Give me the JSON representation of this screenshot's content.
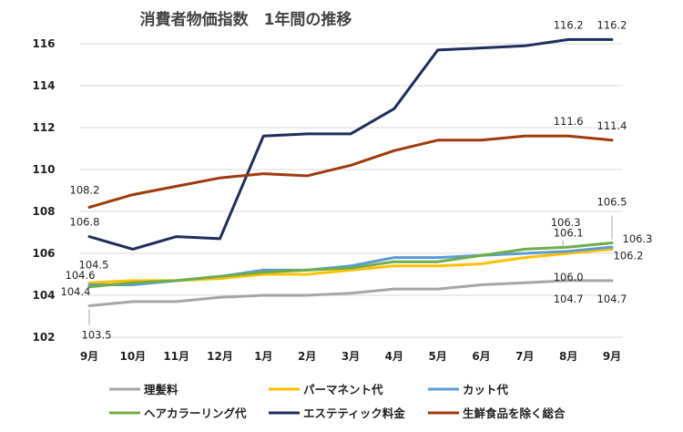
{
  "chart_data": {
    "type": "line",
    "title": "消費者物価指数　1年間の推移",
    "categories": [
      "9月",
      "10月",
      "11月",
      "12月",
      "1月",
      "2月",
      "3月",
      "4月",
      "5月",
      "6月",
      "7月",
      "8月",
      "9月"
    ],
    "y_ticks": [
      "102",
      "104",
      "106",
      "108",
      "110",
      "112",
      "114",
      "116"
    ],
    "ylim": [
      102,
      117
    ],
    "grid": true,
    "legend_position": "bottom",
    "series": [
      {
        "name": "理髪料",
        "color": "#a6a6a6",
        "values": [
          103.5,
          103.7,
          103.7,
          103.9,
          104.0,
          104.0,
          104.1,
          104.3,
          104.3,
          104.5,
          104.6,
          104.7,
          104.7
        ]
      },
      {
        "name": "パーマネント代",
        "color": "#ffc000",
        "values": [
          104.6,
          104.7,
          104.7,
          104.8,
          105.0,
          105.0,
          105.2,
          105.4,
          105.4,
          105.5,
          105.8,
          106.0,
          106.2
        ]
      },
      {
        "name": "カット代",
        "color": "#5b9bd5",
        "values": [
          104.5,
          104.5,
          104.7,
          104.9,
          105.2,
          105.2,
          105.4,
          105.8,
          105.8,
          105.9,
          106.0,
          106.1,
          106.3
        ]
      },
      {
        "name": "ヘアカラーリング代",
        "color": "#70ad47",
        "values": [
          104.4,
          104.6,
          104.7,
          104.9,
          105.1,
          105.2,
          105.3,
          105.6,
          105.6,
          105.9,
          106.2,
          106.3,
          106.5
        ]
      },
      {
        "name": "エステティック料金",
        "color": "#1f2d5c",
        "values": [
          106.8,
          106.2,
          106.8,
          106.7,
          111.6,
          111.7,
          111.7,
          112.9,
          115.7,
          115.8,
          115.9,
          116.2,
          116.2
        ]
      },
      {
        "name": "生鮮食品を除く総合",
        "color": "#9e3a0c",
        "values": [
          108.2,
          108.8,
          109.2,
          109.6,
          109.8,
          109.7,
          110.2,
          110.9,
          111.4,
          111.4,
          111.6,
          111.6,
          111.4
        ]
      }
    ],
    "data_labels": [
      {
        "series": "生鮮食品を除く総合",
        "text": "108.2",
        "x_index": 0,
        "value": 108.2
      },
      {
        "series": "エステティック料金",
        "text": "106.8",
        "x_index": 0,
        "value": 106.8
      },
      {
        "series": "カット代",
        "text": "104.5",
        "x_index": 0,
        "value": 104.5
      },
      {
        "series": "パーマネント代",
        "text": "104.6",
        "x_index": 0,
        "value": 104.6
      },
      {
        "series": "ヘアカラーリング代",
        "text": "104.4",
        "x_index": 0,
        "value": 104.4
      },
      {
        "series": "理髪料",
        "text": "103.5",
        "x_index": 0,
        "value": 103.5
      },
      {
        "series": "エステティック料金",
        "text": "116.2",
        "x_index": 11,
        "value": 116.2
      },
      {
        "series": "エステティック料金",
        "text": "116.2",
        "x_index": 12,
        "value": 116.2
      },
      {
        "series": "生鮮食品を除く総合",
        "text": "111.6",
        "x_index": 11,
        "value": 111.6
      },
      {
        "series": "生鮮食品を除く総合",
        "text": "111.4",
        "x_index": 12,
        "value": 111.4
      },
      {
        "series": "ヘアカラーリング代",
        "text": "106.3",
        "x_index": 11,
        "value": 106.3
      },
      {
        "series": "カット代",
        "text": "106.1",
        "x_index": 11,
        "value": 106.1
      },
      {
        "series": "パーマネント代",
        "text": "106.0",
        "x_index": 11,
        "value": 106.0
      },
      {
        "series": "理髪料",
        "text": "104.7",
        "x_index": 11,
        "value": 104.7
      },
      {
        "series": "ヘアカラーリング代",
        "text": "106.5",
        "x_index": 12,
        "value": 106.5
      },
      {
        "series": "カット代",
        "text": "106.3",
        "x_index": 12,
        "value": 106.3
      },
      {
        "series": "パーマネント代",
        "text": "106.2",
        "x_index": 12,
        "value": 106.2
      },
      {
        "series": "理髪料",
        "text": "104.7",
        "x_index": 12,
        "value": 104.7
      }
    ]
  }
}
